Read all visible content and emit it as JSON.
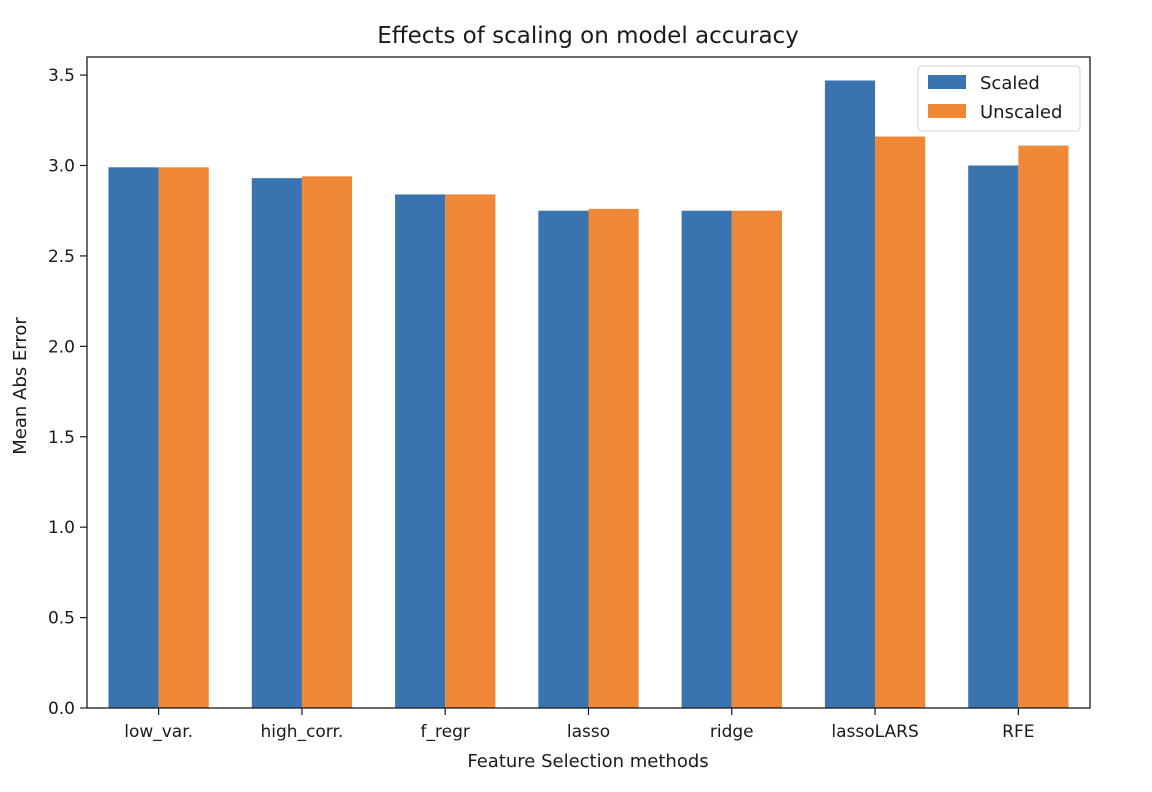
{
  "chart_data": {
    "type": "bar",
    "title": "Effects of scaling on model accuracy",
    "xlabel": "Feature Selection methods",
    "ylabel": "Mean Abs Error",
    "categories": [
      "low_var.",
      "high_corr.",
      "f_regr",
      "lasso",
      "ridge",
      "lassoLARS",
      "RFE"
    ],
    "series": [
      {
        "name": "Scaled",
        "color": "#3a74b0",
        "values": [
          2.99,
          2.93,
          2.84,
          2.75,
          2.75,
          3.47,
          3.0
        ]
      },
      {
        "name": "Unscaled",
        "color": "#ee8736",
        "values": [
          2.99,
          2.94,
          2.84,
          2.76,
          2.75,
          3.16,
          3.11
        ]
      }
    ],
    "ylim": [
      0,
      3.6
    ],
    "yticks": [
      "0.0",
      "0.5",
      "1.0",
      "1.5",
      "2.0",
      "2.5",
      "3.0",
      "3.5"
    ],
    "legend": {
      "placement": "top-right"
    },
    "grid": false
  }
}
